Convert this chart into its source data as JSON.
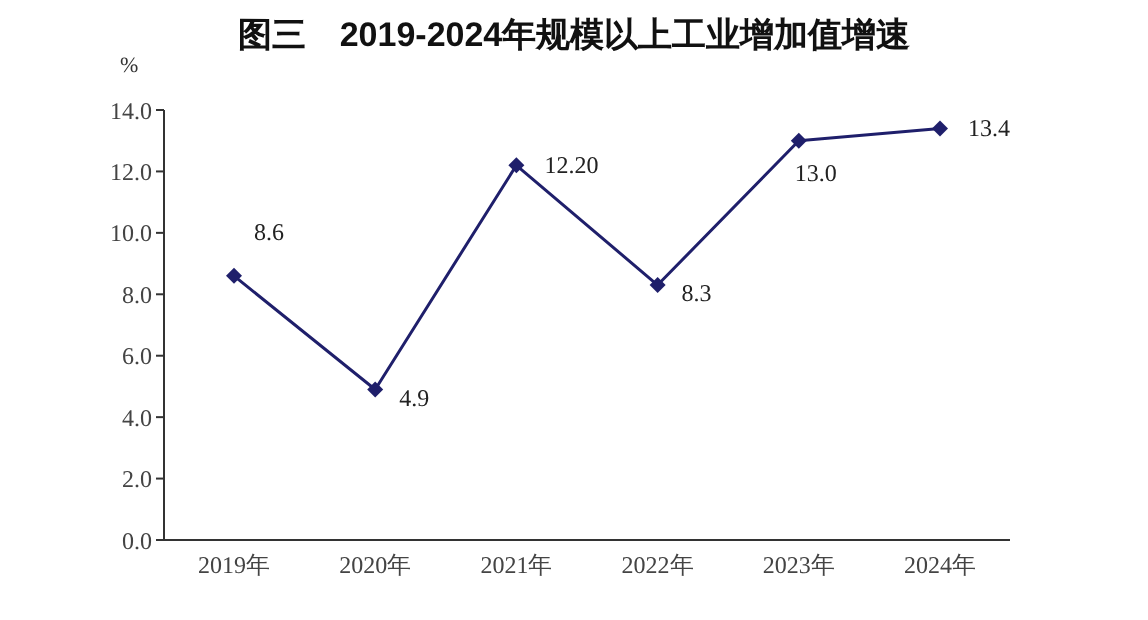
{
  "chart_data": {
    "type": "line",
    "title": "图三　2019-2024年规模以上工业增加值增速",
    "ylabel": "%",
    "categories": [
      "2019年",
      "2020年",
      "2021年",
      "2022年",
      "2023年",
      "2024年"
    ],
    "series": [
      {
        "color": "#1f1f6b",
        "values": [
          8.6,
          4.9,
          12.2,
          8.3,
          13.0,
          13.4
        ],
        "value_labels": [
          "8.6",
          "4.9",
          "12.20",
          "8.3",
          "13.0",
          "13.4"
        ]
      }
    ],
    "ylim": [
      0,
      14
    ],
    "yticks": [
      {
        "value": 0,
        "label": "0.0"
      },
      {
        "value": 2,
        "label": "2.0"
      },
      {
        "value": 4,
        "label": "4.0"
      },
      {
        "value": 6,
        "label": "6.0"
      },
      {
        "value": 8,
        "label": "8.0"
      },
      {
        "value": 10,
        "label": "10.0"
      },
      {
        "value": 12,
        "label": "12.0"
      },
      {
        "value": 14,
        "label": "14.0"
      }
    ],
    "grid": false,
    "legend": false,
    "marker": "diamond",
    "line_style": "solid"
  }
}
